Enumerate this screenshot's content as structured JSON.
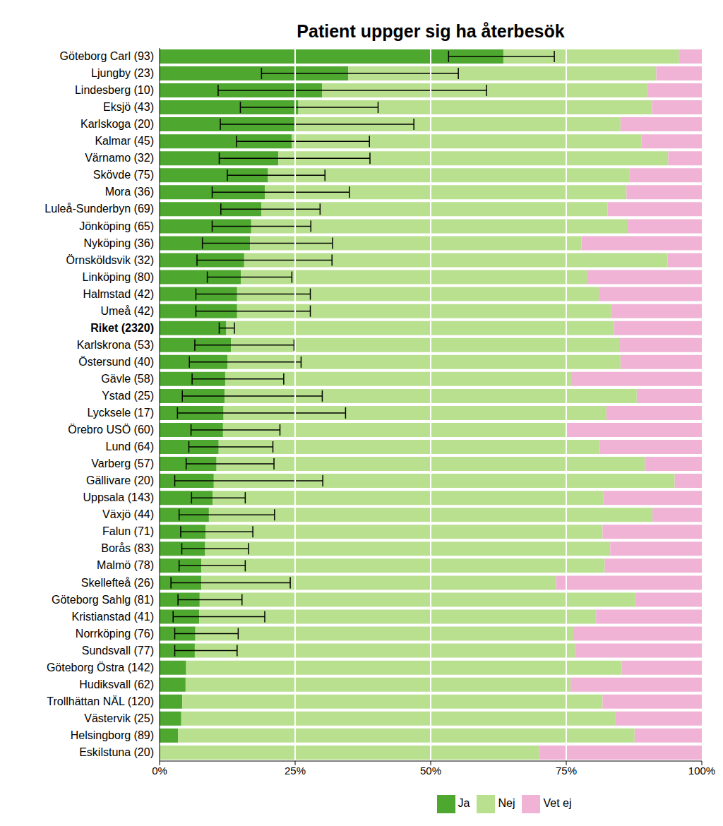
{
  "chart_data": {
    "type": "bar",
    "title": "Patient uppger sig ha återbesök",
    "orientation": "horizontal",
    "stacked": true,
    "grid": true,
    "legend": "bottom",
    "xlim": [
      0,
      100
    ],
    "xticks": [
      {
        "value": 0,
        "label": "0%"
      },
      {
        "value": 25,
        "label": "25%"
      },
      {
        "value": 50,
        "label": "50%"
      },
      {
        "value": 75,
        "label": "75%"
      },
      {
        "value": 100,
        "label": "100%"
      }
    ],
    "categories": [
      "Göteborg Carl (93)",
      "Ljungby (23)",
      "Lindesberg (10)",
      "Eksjö (43)",
      "Karlskoga (20)",
      "Kalmar (45)",
      "Värnamo (32)",
      "Skövde (75)",
      "Mora (36)",
      "Luleå-Sunderbyn (69)",
      "Jönköping (65)",
      "Nyköping (36)",
      "Örnsköldsvik (32)",
      "Linköping (80)",
      "Halmstad (42)",
      "Umeå (42)",
      "Riket (2320)",
      "Karlskrona (53)",
      "Östersund (40)",
      "Gävle (58)",
      "Ystad (25)",
      "Lycksele (17)",
      "Örebro USÖ (60)",
      "Lund (64)",
      "Varberg (57)",
      "Gällivare (20)",
      "Uppsala (143)",
      "Växjö (44)",
      "Falun (71)",
      "Borås (83)",
      "Malmö (78)",
      "Skellefteå (26)",
      "Göteborg Sahlg (81)",
      "Kristianstad (41)",
      "Norrköping (76)",
      "Sundsvall (77)",
      "Göteborg Östra (142)",
      "Hudiksvall (62)",
      "Trollhättan NÄL (120)",
      "Västervik (25)",
      "Helsingborg (89)",
      "Eskilstuna (20)"
    ],
    "series": [
      {
        "name": "Ja",
        "color": "#4ea72e",
        "values": [
          63.4,
          34.8,
          30,
          25.6,
          25,
          24.4,
          21.9,
          20,
          19.4,
          18.8,
          16.9,
          16.7,
          15.6,
          15,
          14.3,
          14.3,
          12.3,
          13.2,
          12.5,
          12.1,
          12,
          11.8,
          11.7,
          10.9,
          10.5,
          10,
          9.8,
          9.1,
          8.5,
          8.4,
          7.7,
          7.7,
          7.4,
          7.3,
          6.6,
          6.5,
          4.9,
          4.8,
          4.2,
          4,
          3.4,
          0
        ],
        "ci_low": [
          53.3,
          18.8,
          10.8,
          14.9,
          11.2,
          14.2,
          11,
          12.5,
          9.7,
          11.3,
          9.7,
          7.9,
          6.9,
          8.8,
          6.7,
          6.7,
          11,
          6.5,
          5.5,
          6,
          4.2,
          3.3,
          5.8,
          5.4,
          4.9,
          2.8,
          5.9,
          3.6,
          3.9,
          4.1,
          3.6,
          2.1,
          3.4,
          2.5,
          2.8,
          2.8,
          null,
          null,
          null,
          null,
          null,
          null
        ],
        "ci_high": [
          72.8,
          55.1,
          60.3,
          40.3,
          46.9,
          38.7,
          38.8,
          30.5,
          35,
          29.6,
          27.9,
          31.9,
          31.8,
          24.4,
          27.8,
          27.8,
          13.8,
          24.8,
          26.1,
          22.9,
          30,
          34.3,
          22.2,
          20.9,
          21.1,
          30.1,
          15.8,
          21.2,
          17.2,
          16.4,
          15.8,
          24.1,
          15.2,
          19.4,
          14.5,
          14.3,
          null,
          null,
          null,
          null,
          null,
          null
        ]
      },
      {
        "name": "Nej",
        "color": "#b9e08f",
        "values": [
          32.4,
          56.8,
          60,
          65.2,
          60,
          64.5,
          71.9,
          66.7,
          66.7,
          63.8,
          69.3,
          61.1,
          78.1,
          63.8,
          66.7,
          69,
          71.5,
          71.7,
          72.5,
          63.8,
          76,
          70.6,
          63.3,
          70.3,
          79,
          85,
          72,
          81.8,
          73.2,
          74.7,
          74.4,
          65.4,
          80.3,
          73.2,
          69.7,
          70.1,
          80.3,
          71,
          77.5,
          80,
          84.2,
          70
        ]
      },
      {
        "name": "Vet ej",
        "color": "#f0b3d6",
        "values": [
          4.2,
          8.4,
          10,
          9.2,
          15,
          11.1,
          6.2,
          13.3,
          13.9,
          17.4,
          13.8,
          22.2,
          6.3,
          21.2,
          19,
          16.7,
          16.2,
          15.1,
          15,
          24.1,
          12,
          17.6,
          25,
          18.8,
          10.5,
          5,
          18.2,
          9.1,
          18.3,
          16.9,
          17.9,
          26.9,
          12.3,
          19.5,
          23.7,
          23.4,
          14.8,
          24.2,
          18.3,
          16,
          12.4,
          30
        ]
      }
    ]
  }
}
